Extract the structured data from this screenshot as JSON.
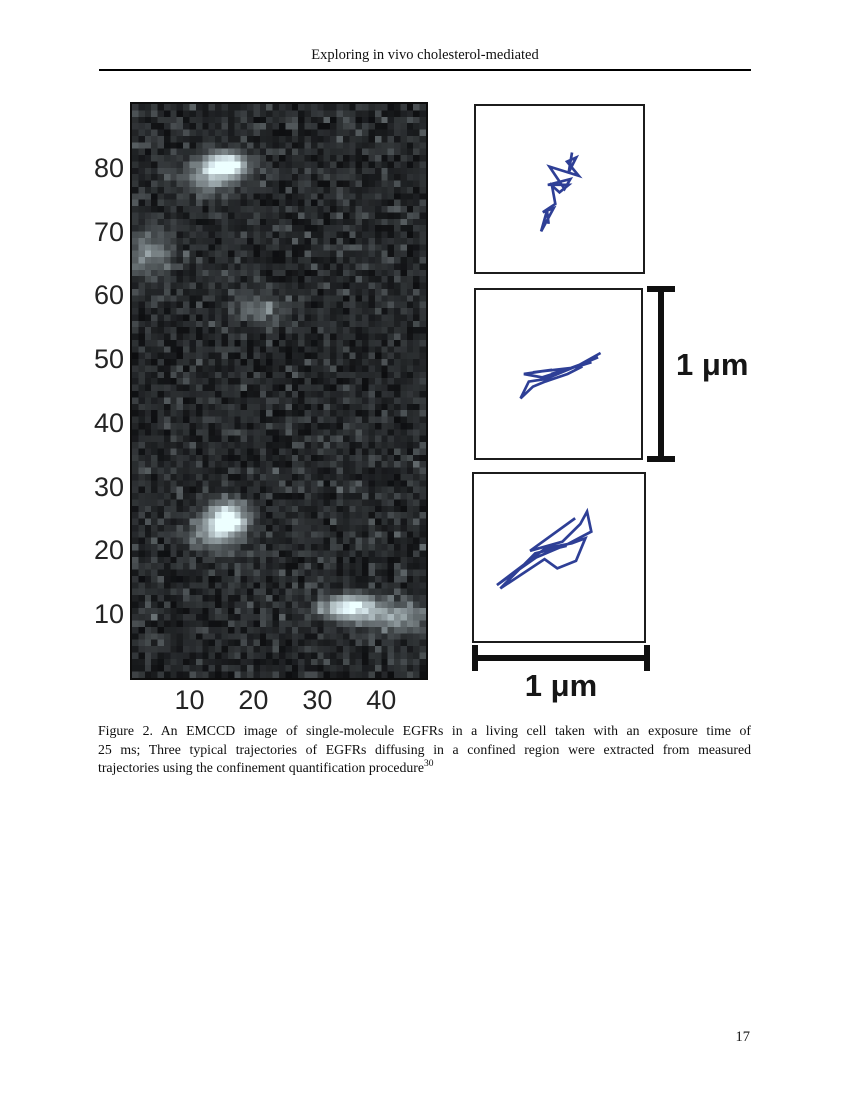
{
  "page": {
    "running_header": "Exploring in vivo cholesterol-mediated",
    "page_number": "17"
  },
  "caption": {
    "line1": "Figure 2.  An EMCCD image of single-molecule EGFRs in a living cell taken with an exposure time of",
    "line2": "25 ms; Three typical trajectories of EGFRs diffusing in a confined region were extracted from measured",
    "line3": "trajectories using the confinement quantification procedure",
    "reference_superscript": "30"
  },
  "scale_bars": {
    "vertical_label": "1 μm",
    "horizontal_label": "1 μm"
  },
  "chart_data": [
    {
      "type": "heatmap",
      "name": "emccd-image",
      "title": "EMCCD image of single-molecule EGFRs",
      "x_ticks": [
        "10",
        "20",
        "30",
        "40"
      ],
      "y_ticks": [
        "80",
        "70",
        "60",
        "50",
        "40",
        "30",
        "20",
        "10"
      ],
      "x_range": [
        1,
        47
      ],
      "y_range": [
        0,
        90
      ],
      "grid": false,
      "noise_seed": 1337,
      "bright_spots": [
        {
          "x": 15.7,
          "y": 80.5,
          "intensity": 1.0,
          "rx": 2.4,
          "ry": 1.3
        },
        {
          "x": 13.0,
          "y": 78.5,
          "intensity": 0.45,
          "rx": 3.2,
          "ry": 1.8
        },
        {
          "x": 3.5,
          "y": 66.5,
          "intensity": 0.38,
          "rx": 2.4,
          "ry": 2.6
        },
        {
          "x": 21.0,
          "y": 58.0,
          "intensity": 0.32,
          "rx": 2.6,
          "ry": 1.5
        },
        {
          "x": 16.0,
          "y": 25.0,
          "intensity": 0.95,
          "rx": 2.1,
          "ry": 1.8
        },
        {
          "x": 13.5,
          "y": 22.5,
          "intensity": 0.42,
          "rx": 2.8,
          "ry": 1.8
        },
        {
          "x": 35.0,
          "y": 11.0,
          "intensity": 0.92,
          "rx": 3.0,
          "ry": 1.3
        },
        {
          "x": 42.5,
          "y": 9.5,
          "intensity": 0.48,
          "rx": 3.4,
          "ry": 1.7
        }
      ]
    },
    {
      "type": "line",
      "name": "trajectory-1",
      "color": "#2e3f96",
      "points": [
        [
          0.575,
          0.28
        ],
        [
          0.555,
          0.4
        ],
        [
          0.6,
          0.31
        ],
        [
          0.545,
          0.335
        ],
        [
          0.615,
          0.42
        ],
        [
          0.44,
          0.365
        ],
        [
          0.53,
          0.5
        ],
        [
          0.565,
          0.44
        ],
        [
          0.43,
          0.475
        ],
        [
          0.555,
          0.475
        ],
        [
          0.5,
          0.52
        ],
        [
          0.455,
          0.48
        ],
        [
          0.475,
          0.59
        ],
        [
          0.4,
          0.64
        ],
        [
          0.465,
          0.615
        ],
        [
          0.39,
          0.755
        ],
        [
          0.425,
          0.63
        ],
        [
          0.435,
          0.71
        ]
      ]
    },
    {
      "type": "line",
      "name": "trajectory-2",
      "color": "#2e3f96",
      "points": [
        [
          0.755,
          0.375
        ],
        [
          0.6,
          0.46
        ],
        [
          0.7,
          0.43
        ],
        [
          0.455,
          0.5
        ],
        [
          0.57,
          0.465
        ],
        [
          0.345,
          0.49
        ],
        [
          0.46,
          0.475
        ],
        [
          0.29,
          0.5
        ],
        [
          0.4,
          0.52
        ],
        [
          0.545,
          0.475
        ],
        [
          0.655,
          0.435
        ],
        [
          0.74,
          0.4
        ],
        [
          0.42,
          0.53
        ],
        [
          0.32,
          0.545
        ],
        [
          0.27,
          0.645
        ],
        [
          0.345,
          0.575
        ],
        [
          0.42,
          0.545
        ],
        [
          0.555,
          0.5
        ],
        [
          0.645,
          0.455
        ]
      ]
    },
    {
      "type": "line",
      "name": "trajectory-3",
      "color": "#2e3f96",
      "points": [
        [
          0.595,
          0.265
        ],
        [
          0.33,
          0.46
        ],
        [
          0.52,
          0.405
        ],
        [
          0.625,
          0.3
        ],
        [
          0.665,
          0.225
        ],
        [
          0.69,
          0.345
        ],
        [
          0.55,
          0.42
        ],
        [
          0.365,
          0.5
        ],
        [
          0.135,
          0.665
        ],
        [
          0.42,
          0.445
        ],
        [
          0.575,
          0.415
        ],
        [
          0.655,
          0.385
        ],
        [
          0.6,
          0.52
        ],
        [
          0.49,
          0.565
        ],
        [
          0.415,
          0.51
        ],
        [
          0.155,
          0.685
        ],
        [
          0.36,
          0.475
        ],
        [
          0.545,
          0.43
        ]
      ]
    }
  ]
}
